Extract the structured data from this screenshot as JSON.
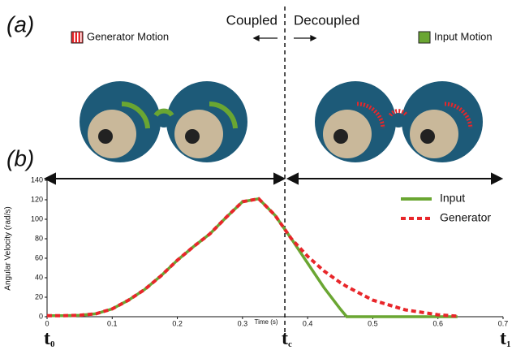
{
  "figure": {
    "panel_labels": [
      "(a)",
      "(b)"
    ],
    "motion_legend": [
      {
        "label": "Generator Motion",
        "color": "#e8262a"
      },
      {
        "label": "Input Motion",
        "color": "#6aa632"
      }
    ],
    "coupled": "Coupled",
    "decoupled": "Decoupled"
  },
  "chart_data": {
    "type": "line",
    "xlabel": "Time (s)",
    "ylabel": "Angular Velocity (rad/s)",
    "x": [
      0,
      0.025,
      0.05,
      0.075,
      0.1,
      0.125,
      0.15,
      0.175,
      0.2,
      0.225,
      0.25,
      0.275,
      0.3,
      0.325,
      0.35,
      0.375,
      0.4,
      0.425,
      0.45,
      0.46,
      0.5,
      0.55,
      0.6,
      0.63
    ],
    "series": [
      {
        "name": "Input",
        "color": "#6aa632",
        "dashed": false,
        "values": [
          1,
          1,
          1.5,
          3,
          8,
          17,
          28,
          42,
          58,
          72,
          85,
          102,
          118,
          121,
          104,
          80,
          55,
          30,
          8,
          0,
          0,
          0,
          0,
          0
        ]
      },
      {
        "name": "Generator",
        "color": "#e8262a",
        "dashed": true,
        "values": [
          1,
          1,
          1.5,
          3,
          8,
          17,
          28,
          42,
          58,
          72,
          85,
          102,
          118,
          121,
          104,
          80,
          62,
          47,
          35,
          31,
          17,
          7,
          2,
          0.5
        ]
      }
    ],
    "xlim": [
      0,
      0.7
    ],
    "ylim": [
      0,
      140
    ],
    "xticks": [
      0,
      0.1,
      0.2,
      0.3,
      0.4,
      0.5,
      0.6,
      0.7
    ],
    "yticks": [
      0,
      20,
      40,
      60,
      80,
      100,
      120,
      140
    ],
    "grid": false,
    "legend": "upper right",
    "markers": [
      {
        "x": 0,
        "base": "t",
        "sub": "0"
      },
      {
        "x": 0.365,
        "base": "t",
        "sub": "c"
      },
      {
        "x": 0.7,
        "base": "t",
        "sub": "1"
      }
    ]
  }
}
